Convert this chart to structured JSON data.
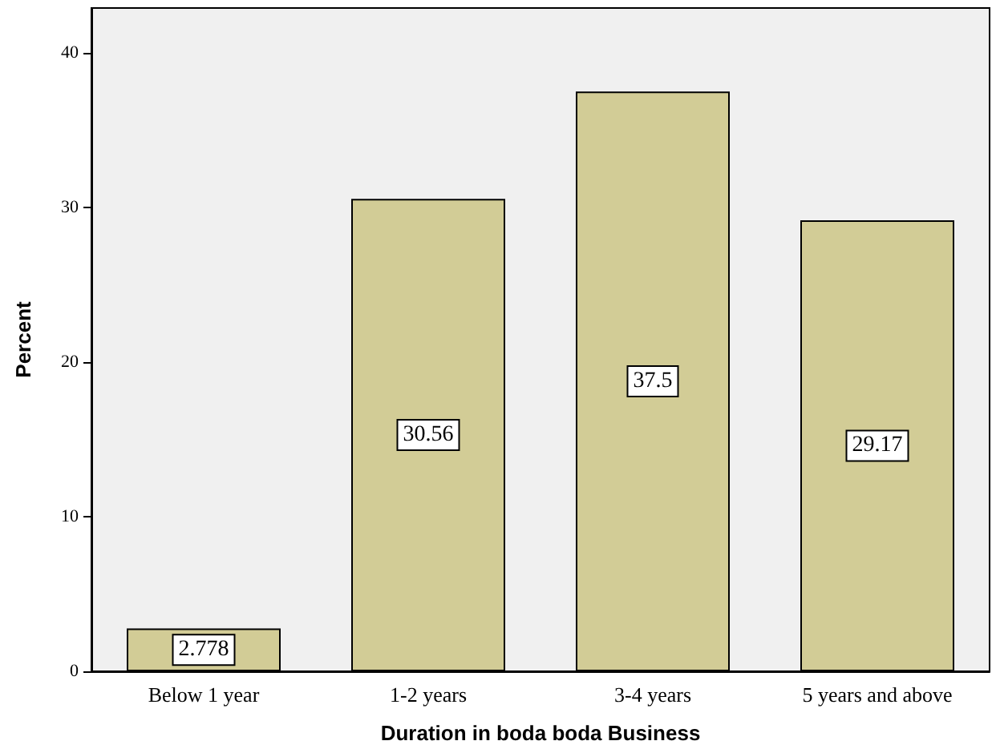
{
  "chart_data": {
    "type": "bar",
    "xlabel": "Duration in boda boda Business",
    "ylabel": "Percent",
    "categories": [
      "Below 1 year",
      "1-2 years",
      "3-4 years",
      "5 years and above"
    ],
    "values": [
      2.778,
      30.56,
      37.5,
      29.17
    ],
    "color": "#d2cc96",
    "ylim": [
      0,
      42.9
    ],
    "yticks": [
      0,
      10,
      20,
      30,
      40
    ],
    "grid": false,
    "data_labels": true
  }
}
